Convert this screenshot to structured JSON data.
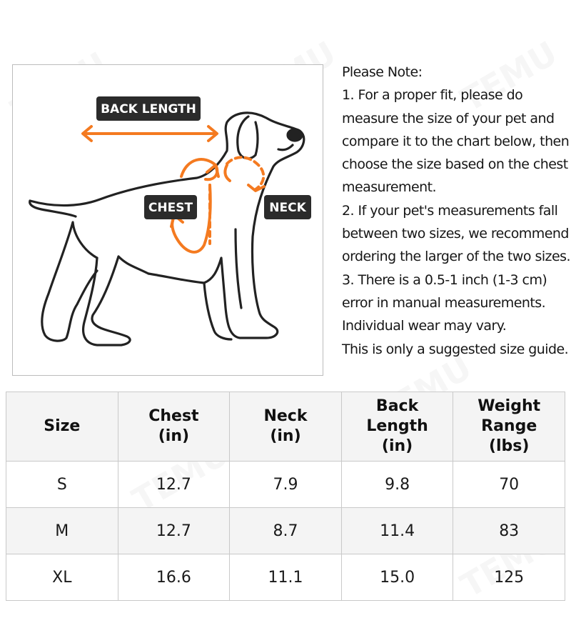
{
  "watermark_text": "TEMU",
  "diagram": {
    "labels": {
      "back_length": "BACK LENGTH",
      "chest": "CHEST",
      "neck": "NECK"
    },
    "colors": {
      "accent": "#f47a20",
      "label_bg": "#2b2b2b",
      "outline": "#222222"
    }
  },
  "note": {
    "heading": "Please Note:",
    "lines": [
      "1. For a proper fit, please do",
      "measure the size of your pet and",
      "compare it to the chart below, then",
      "choose the size based on the chest",
      "measurement.",
      "2. If your pet's measurements fall",
      "between two sizes, we recommend",
      "ordering the larger of the two sizes.",
      "3. There is a 0.5-1 inch (1-3 cm)",
      "error in manual measurements.",
      "Individual wear may vary.",
      "This is only a suggested size guide."
    ]
  },
  "table": {
    "headers": [
      [
        "Size"
      ],
      [
        "Chest",
        "(in)"
      ],
      [
        "Neck",
        "(in)"
      ],
      [
        "Back",
        "Length",
        "(in)"
      ],
      [
        "Weight",
        "Range",
        "(lbs)"
      ]
    ],
    "rows": [
      [
        "S",
        "12.7",
        "7.9",
        "9.8",
        "70"
      ],
      [
        "M",
        "12.7",
        "8.7",
        "11.4",
        "83"
      ],
      [
        "XL",
        "16.6",
        "11.1",
        "15.0",
        "125"
      ]
    ]
  }
}
